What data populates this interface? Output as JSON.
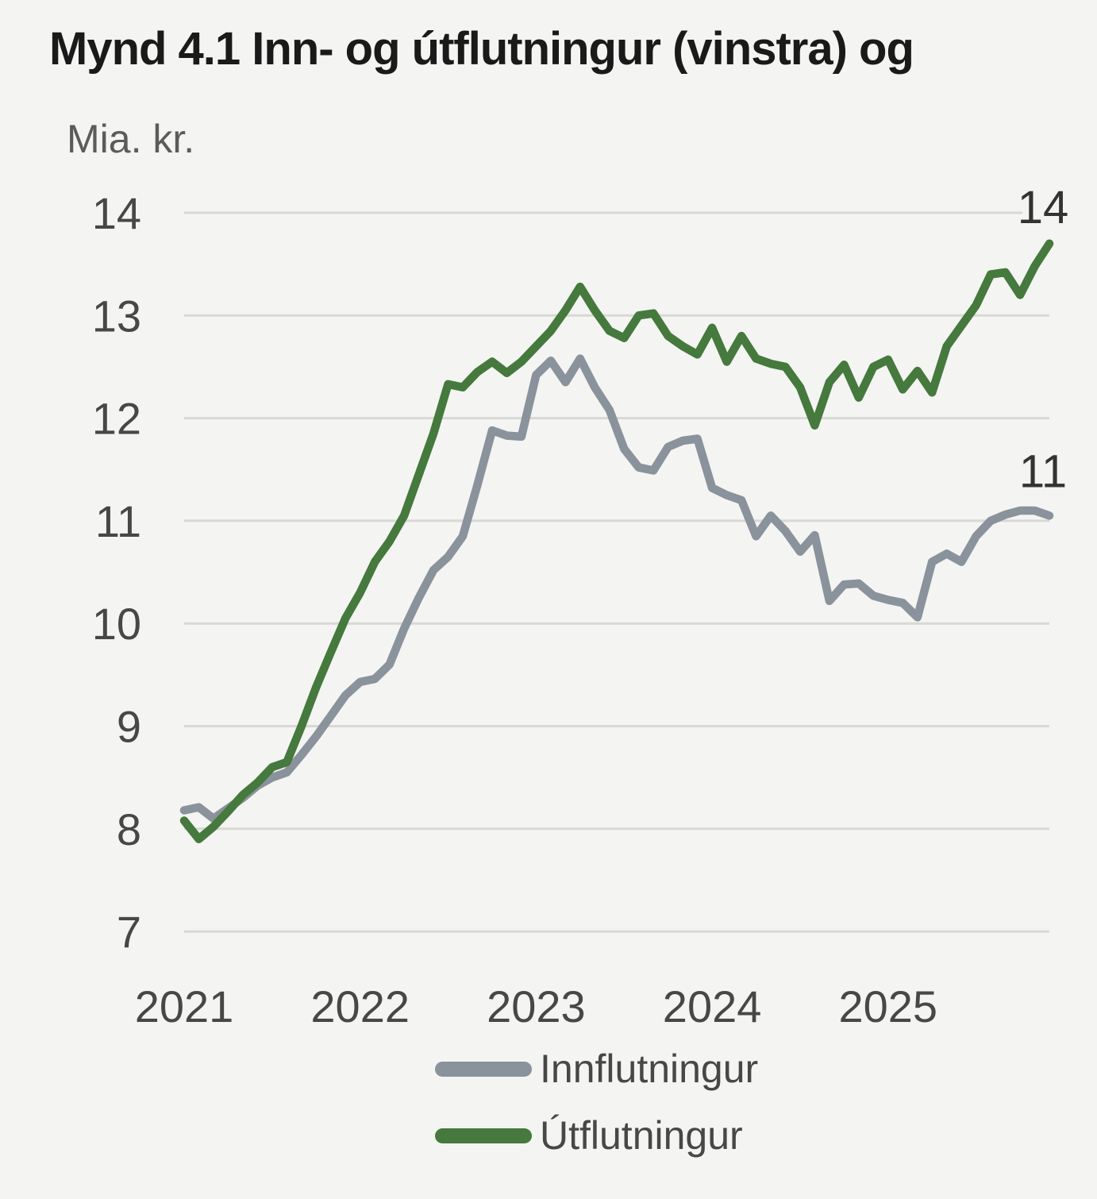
{
  "title": "Mynd 4.1 Inn- og útflutningur (vinstra) og",
  "y_axis_unit": "Mia. kr.",
  "end_labels": {
    "export": "14",
    "import": "11"
  },
  "legend": [
    {
      "label": "Innflutningur",
      "series": "import"
    },
    {
      "label": "Útflutningur",
      "series": "export"
    }
  ],
  "colors": {
    "background": "#f4f4f2",
    "import_line": "#8a929c",
    "export_line": "#45793d",
    "gridline": "#d8d8d4",
    "title_text": "#1a1a1a",
    "axis_text": "#474747",
    "unit_text": "#5b5b5b",
    "legend_text": "#474747",
    "end_label_text": "#333333"
  },
  "chart_data": {
    "type": "line",
    "title": "Mynd 4.1 Inn- og útflutningur (vinstra) og",
    "ylabel": "Mia. kr.",
    "ylim": [
      7,
      14
    ],
    "yticks": [
      7,
      8,
      9,
      10,
      11,
      12,
      13,
      14
    ],
    "xticks": [
      "2021",
      "2022",
      "2023",
      "2024",
      "2025"
    ],
    "x_start": "2021-01",
    "x_end": "2025-12",
    "frequency": "monthly",
    "grid": true,
    "legend_position": "bottom",
    "series": [
      {
        "name": "Innflutningur",
        "color": "#8a929c",
        "end_label": "11",
        "values": [
          8.18,
          8.21,
          8.1,
          8.2,
          8.3,
          8.42,
          8.5,
          8.55,
          8.72,
          8.9,
          9.1,
          9.3,
          9.43,
          9.46,
          9.6,
          9.95,
          10.25,
          10.52,
          10.65,
          10.85,
          11.35,
          11.88,
          11.83,
          11.82,
          12.42,
          12.56,
          12.35,
          12.58,
          12.3,
          12.08,
          11.7,
          11.52,
          11.49,
          11.72,
          11.78,
          11.8,
          11.32,
          11.25,
          11.2,
          10.85,
          11.05,
          10.9,
          10.7,
          10.86,
          10.22,
          10.38,
          10.39,
          10.27,
          10.23,
          10.2,
          10.06,
          10.6,
          10.68,
          10.6,
          10.85,
          11.0,
          11.06,
          11.1,
          11.1,
          11.05
        ]
      },
      {
        "name": "Útflutningur",
        "color": "#45793d",
        "end_label": "14",
        "values": [
          8.08,
          7.9,
          8.02,
          8.17,
          8.33,
          8.45,
          8.6,
          8.65,
          9.0,
          9.38,
          9.72,
          10.05,
          10.3,
          10.6,
          10.8,
          11.05,
          11.45,
          11.85,
          12.33,
          12.3,
          12.45,
          12.55,
          12.44,
          12.55,
          12.7,
          12.85,
          13.05,
          13.28,
          13.05,
          12.85,
          12.78,
          13.0,
          13.02,
          12.8,
          12.7,
          12.62,
          12.88,
          12.55,
          12.8,
          12.58,
          12.53,
          12.5,
          12.3,
          11.93,
          12.35,
          12.52,
          12.2,
          12.5,
          12.57,
          12.28,
          12.46,
          12.25,
          12.7,
          12.9,
          13.1,
          13.4,
          13.42,
          13.2,
          13.48,
          13.7
        ]
      }
    ]
  }
}
